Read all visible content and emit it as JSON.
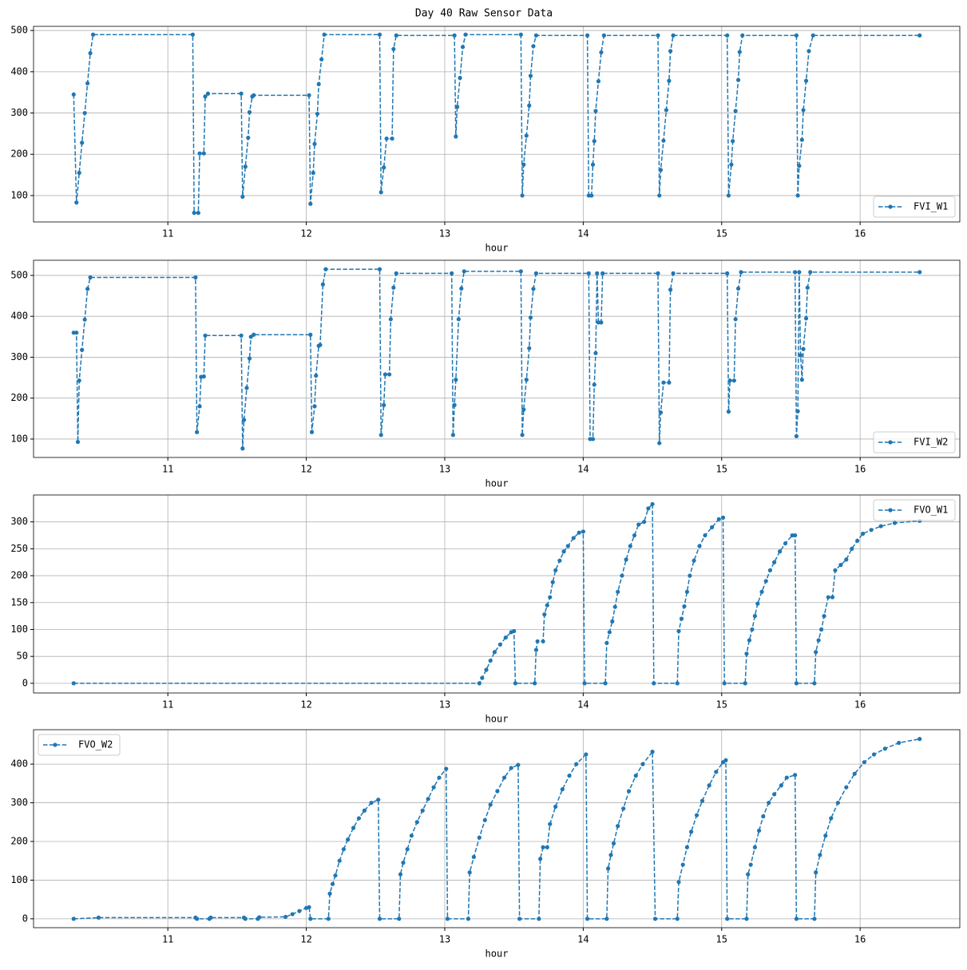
{
  "title": "Day 40 Raw Sensor Data",
  "chart_data": [
    {
      "type": "line",
      "xlabel": "hour",
      "grid": true,
      "legend": "lower right",
      "xlim": [
        10.03,
        16.72
      ],
      "ylim": [
        36,
        510
      ],
      "xticks": [
        11,
        12,
        13,
        14,
        15,
        16
      ],
      "yticks": [
        100,
        200,
        300,
        400,
        500
      ],
      "x": [
        10.32,
        10.34,
        10.36,
        10.38,
        10.4,
        10.42,
        10.44,
        10.46,
        11.18,
        11.19,
        11.22,
        11.23,
        11.26,
        11.27,
        11.29,
        11.53,
        11.54,
        11.56,
        11.58,
        11.59,
        11.61,
        11.62,
        12.02,
        12.03,
        12.05,
        12.06,
        12.08,
        12.09,
        12.11,
        12.13,
        12.53,
        12.54,
        12.56,
        12.58,
        12.62,
        12.63,
        12.65,
        13.07,
        13.08,
        13.09,
        13.11,
        13.13,
        13.15,
        13.55,
        13.56,
        13.57,
        13.59,
        13.61,
        13.62,
        13.64,
        13.66,
        14.03,
        14.04,
        14.06,
        14.07,
        14.08,
        14.09,
        14.11,
        14.13,
        14.15,
        14.54,
        14.55,
        14.56,
        14.58,
        14.6,
        14.62,
        14.63,
        14.65,
        15.04,
        15.05,
        15.07,
        15.08,
        15.1,
        15.12,
        15.13,
        15.15,
        15.54,
        15.55,
        15.56,
        15.58,
        15.59,
        15.61,
        15.63,
        15.66,
        16.43
      ],
      "series": [
        {
          "name": "FVI_W1",
          "color": "#1f77b4",
          "values": [
            345,
            83,
            155,
            228,
            300,
            372,
            445,
            490,
            490,
            58,
            58,
            202,
            202,
            340,
            347,
            347,
            97,
            170,
            240,
            302,
            340,
            343,
            343,
            80,
            155,
            225,
            298,
            370,
            430,
            490,
            490,
            108,
            168,
            238,
            238,
            455,
            488,
            488,
            243,
            315,
            385,
            460,
            490,
            490,
            100,
            175,
            245,
            318,
            390,
            462,
            488,
            488,
            100,
            100,
            175,
            232,
            305,
            377,
            447,
            488,
            488,
            100,
            162,
            233,
            307,
            378,
            450,
            488,
            488,
            100,
            175,
            232,
            305,
            380,
            448,
            488,
            488,
            100,
            172,
            235,
            307,
            378,
            450,
            488,
            488
          ]
        }
      ]
    },
    {
      "type": "line",
      "xlabel": "hour",
      "grid": true,
      "legend": "lower right",
      "xlim": [
        10.03,
        16.72
      ],
      "ylim": [
        55,
        537
      ],
      "xticks": [
        11,
        12,
        13,
        14,
        15,
        16
      ],
      "yticks": [
        100,
        200,
        300,
        400,
        500
      ],
      "x": [
        10.32,
        10.34,
        10.35,
        10.36,
        10.38,
        10.4,
        10.42,
        10.44,
        11.2,
        11.21,
        11.23,
        11.24,
        11.26,
        11.27,
        11.53,
        11.54,
        11.55,
        11.57,
        11.59,
        11.6,
        11.62,
        12.03,
        12.04,
        12.06,
        12.07,
        12.09,
        12.1,
        12.12,
        12.14,
        12.53,
        12.54,
        12.56,
        12.57,
        12.6,
        12.61,
        12.63,
        12.65,
        13.05,
        13.06,
        13.07,
        13.08,
        13.1,
        13.12,
        13.14,
        13.55,
        13.56,
        13.57,
        13.59,
        13.61,
        13.62,
        13.64,
        13.66,
        14.04,
        14.05,
        14.07,
        14.08,
        14.09,
        14.1,
        14.11,
        14.13,
        14.14,
        14.54,
        14.55,
        14.56,
        14.58,
        14.62,
        14.63,
        14.65,
        15.04,
        15.05,
        15.06,
        15.09,
        15.1,
        15.12,
        15.14,
        15.53,
        15.54,
        15.55,
        15.56,
        15.57,
        15.58,
        15.59,
        15.61,
        15.62,
        15.64,
        16.43
      ],
      "series": [
        {
          "name": "FVI_W2",
          "color": "#1f77b4",
          "values": [
            360,
            360,
            93,
            243,
            318,
            392,
            467,
            495,
            495,
            117,
            180,
            252,
            253,
            353,
            353,
            77,
            147,
            225,
            297,
            350,
            355,
            355,
            117,
            180,
            255,
            328,
            330,
            478,
            515,
            515,
            110,
            183,
            258,
            258,
            393,
            470,
            505,
            505,
            110,
            183,
            245,
            393,
            468,
            510,
            510,
            110,
            172,
            245,
            322,
            397,
            467,
            505,
            505,
            100,
            100,
            233,
            310,
            505,
            385,
            385,
            505,
            505,
            90,
            165,
            238,
            238,
            465,
            505,
            505,
            167,
            243,
            243,
            393,
            468,
            508,
            508,
            107,
            168,
            508,
            305,
            245,
            320,
            395,
            470,
            508,
            508
          ]
        }
      ]
    },
    {
      "type": "line",
      "xlabel": "hour",
      "grid": true,
      "legend": "upper right",
      "xlim": [
        10.03,
        16.72
      ],
      "ylim": [
        -18,
        350
      ],
      "xticks": [
        11,
        12,
        13,
        14,
        15,
        16
      ],
      "yticks": [
        0,
        50,
        100,
        150,
        200,
        250,
        300
      ],
      "x": [
        10.32,
        13.25,
        13.27,
        13.3,
        13.33,
        13.36,
        13.4,
        13.44,
        13.48,
        13.5,
        13.51,
        13.65,
        13.66,
        13.67,
        13.71,
        13.72,
        13.74,
        13.76,
        13.78,
        13.8,
        13.83,
        13.86,
        13.89,
        13.93,
        13.97,
        14.0,
        14.01,
        14.16,
        14.17,
        14.19,
        14.21,
        14.23,
        14.25,
        14.28,
        14.31,
        14.34,
        14.37,
        14.4,
        14.44,
        14.47,
        14.5,
        14.51,
        14.68,
        14.69,
        14.71,
        14.73,
        14.75,
        14.77,
        14.8,
        14.84,
        14.88,
        14.93,
        14.98,
        15.01,
        15.02,
        15.17,
        15.18,
        15.2,
        15.22,
        15.24,
        15.26,
        15.29,
        15.32,
        15.35,
        15.38,
        15.42,
        15.46,
        15.51,
        15.53,
        15.54,
        15.67,
        15.68,
        15.7,
        15.72,
        15.74,
        15.77,
        15.8,
        15.82,
        15.86,
        15.9,
        15.94,
        15.98,
        16.02,
        16.08,
        16.15,
        16.25,
        16.43
      ],
      "series": [
        {
          "name": "FVO_W1",
          "color": "#1f77b4",
          "values": [
            0,
            0,
            10,
            25,
            42,
            58,
            72,
            85,
            95,
            97,
            0,
            0,
            62,
            78,
            78,
            128,
            145,
            160,
            188,
            210,
            228,
            245,
            255,
            270,
            280,
            282,
            0,
            0,
            75,
            95,
            115,
            142,
            170,
            200,
            230,
            255,
            275,
            295,
            300,
            325,
            333,
            0,
            0,
            97,
            120,
            143,
            170,
            200,
            228,
            255,
            275,
            290,
            305,
            308,
            0,
            0,
            55,
            80,
            100,
            125,
            148,
            170,
            190,
            210,
            225,
            245,
            260,
            275,
            275,
            0,
            0,
            58,
            80,
            100,
            125,
            160,
            160,
            210,
            220,
            230,
            250,
            265,
            278,
            285,
            292,
            298,
            302
          ]
        }
      ]
    },
    {
      "type": "line",
      "xlabel": "hour",
      "grid": true,
      "legend": "upper left",
      "xlim": [
        10.03,
        16.72
      ],
      "ylim": [
        -23,
        489
      ],
      "xticks": [
        11,
        12,
        13,
        14,
        15,
        16
      ],
      "yticks": [
        0,
        100,
        200,
        300,
        400
      ],
      "x": [
        10.32,
        10.5,
        11.2,
        11.21,
        11.3,
        11.31,
        11.55,
        11.56,
        11.65,
        11.66,
        11.85,
        11.9,
        11.95,
        12.0,
        12.02,
        12.03,
        12.16,
        12.17,
        12.19,
        12.21,
        12.24,
        12.27,
        12.3,
        12.34,
        12.38,
        12.42,
        12.47,
        12.52,
        12.53,
        12.67,
        12.68,
        12.7,
        12.73,
        12.76,
        12.8,
        12.84,
        12.88,
        12.92,
        12.96,
        13.01,
        13.02,
        13.17,
        13.18,
        13.21,
        13.25,
        13.29,
        13.33,
        13.38,
        13.43,
        13.48,
        13.53,
        13.54,
        13.68,
        13.69,
        13.71,
        13.74,
        13.76,
        13.8,
        13.85,
        13.9,
        13.95,
        14.02,
        14.03,
        14.17,
        14.18,
        14.2,
        14.22,
        14.25,
        14.29,
        14.33,
        14.38,
        14.43,
        14.5,
        14.52,
        14.68,
        14.69,
        14.72,
        14.75,
        14.78,
        14.82,
        14.86,
        14.91,
        14.96,
        15.01,
        15.03,
        15.04,
        15.18,
        15.19,
        15.21,
        15.24,
        15.27,
        15.3,
        15.34,
        15.38,
        15.43,
        15.47,
        15.53,
        15.54,
        15.67,
        15.68,
        15.71,
        15.75,
        15.79,
        15.84,
        15.9,
        15.96,
        16.03,
        16.1,
        16.18,
        16.28,
        16.43
      ],
      "series": [
        {
          "name": "FVO_W2",
          "color": "#1f77b4",
          "values": [
            0,
            3,
            3,
            0,
            0,
            3,
            3,
            0,
            0,
            4,
            5,
            12,
            20,
            28,
            30,
            0,
            0,
            65,
            90,
            112,
            150,
            180,
            205,
            235,
            260,
            280,
            300,
            308,
            0,
            0,
            115,
            145,
            180,
            215,
            250,
            280,
            310,
            340,
            365,
            388,
            0,
            0,
            120,
            160,
            210,
            255,
            295,
            330,
            365,
            390,
            398,
            0,
            0,
            155,
            185,
            185,
            245,
            290,
            335,
            370,
            400,
            425,
            0,
            0,
            130,
            165,
            195,
            240,
            285,
            330,
            370,
            400,
            432,
            0,
            0,
            95,
            140,
            185,
            225,
            268,
            305,
            345,
            380,
            405,
            410,
            0,
            0,
            115,
            140,
            185,
            228,
            265,
            300,
            322,
            345,
            365,
            372,
            0,
            0,
            120,
            165,
            215,
            260,
            300,
            340,
            375,
            405,
            425,
            440,
            455,
            465
          ]
        }
      ]
    }
  ]
}
